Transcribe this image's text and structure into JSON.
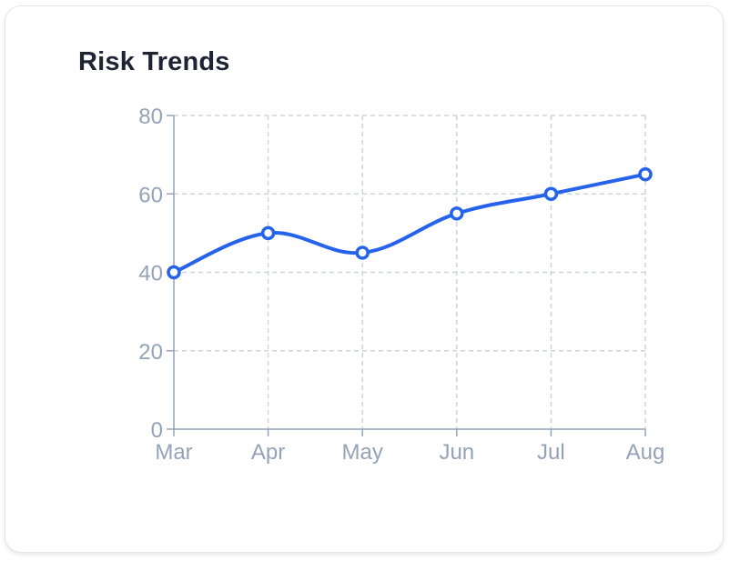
{
  "card": {
    "title": "Risk Trends"
  },
  "colors": {
    "line": "#2563eb",
    "axis": "#94a3b8",
    "grid": "#cfd3d8",
    "tick_text": "#94a3b8",
    "title": "#1e2433"
  },
  "chart_data": {
    "type": "line",
    "categories": [
      "Mar",
      "Apr",
      "May",
      "Jun",
      "Jul",
      "Aug"
    ],
    "series": [
      {
        "values": [
          40,
          50,
          45,
          55,
          60,
          65
        ]
      }
    ],
    "yticks": [
      0,
      20,
      40,
      60,
      80
    ],
    "ylim": [
      0,
      80
    ],
    "xlabel": "",
    "ylabel": "",
    "grid": true,
    "legend": "none",
    "smooth": true,
    "markers": "hollow-circle"
  }
}
